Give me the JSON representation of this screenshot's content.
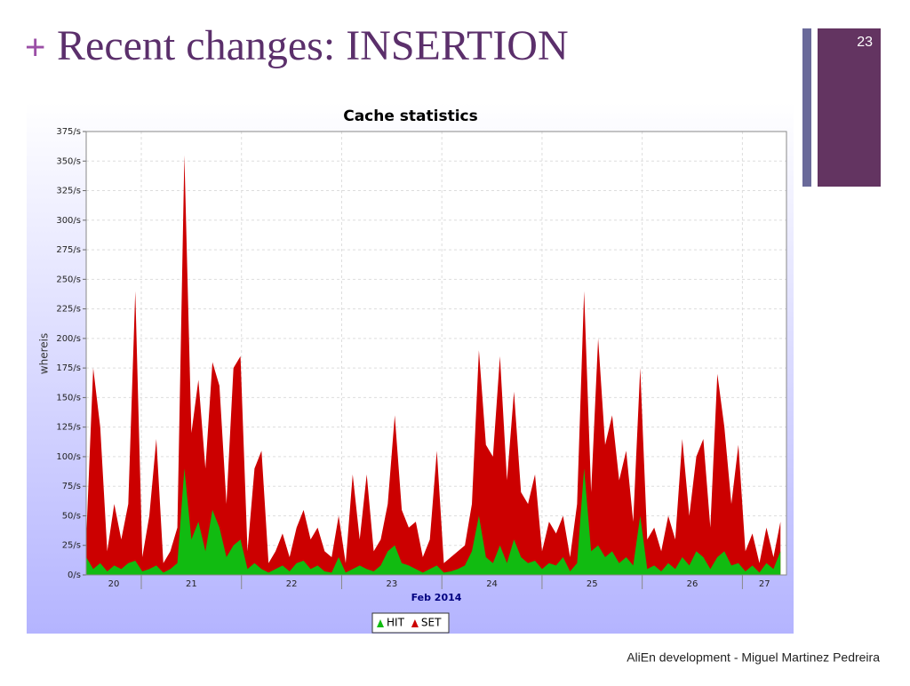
{
  "slide": {
    "marker": "+",
    "title": "Recent changes: INSERTION",
    "page_number": "23",
    "footer": "AliEn development - Miguel Martinez Pedreira"
  },
  "chart_data": {
    "type": "area",
    "title": "Cache statistics",
    "ylabel": "whereis",
    "xlabel": "Feb 2014",
    "x": [
      20.45,
      20.52,
      20.59,
      20.66,
      20.73,
      20.8,
      20.87,
      20.94,
      21.01,
      21.08,
      21.15,
      21.22,
      21.29,
      21.36,
      21.43,
      21.5,
      21.57,
      21.64,
      21.71,
      21.78,
      21.85,
      21.92,
      21.99,
      22.06,
      22.13,
      22.2,
      22.27,
      22.34,
      22.41,
      22.48,
      22.55,
      22.62,
      22.69,
      22.76,
      22.83,
      22.9,
      22.97,
      23.04,
      23.11,
      23.18,
      23.25,
      23.32,
      23.39,
      23.46,
      23.53,
      23.6,
      23.67,
      23.74,
      23.81,
      23.88,
      23.95,
      24.02,
      24.09,
      24.16,
      24.23,
      24.3,
      24.37,
      24.44,
      24.51,
      24.58,
      24.65,
      24.72,
      24.79,
      24.86,
      24.93,
      25.0,
      25.07,
      25.14,
      25.21,
      25.28,
      25.35,
      25.42,
      25.49,
      25.56,
      25.63,
      25.7,
      25.77,
      25.84,
      25.91,
      25.98,
      26.05,
      26.12,
      26.19,
      26.26,
      26.33,
      26.4,
      26.47,
      26.54,
      26.61,
      26.68,
      26.75,
      26.82,
      26.89,
      26.96,
      27.03,
      27.1,
      27.17,
      27.24,
      27.31,
      27.38
    ],
    "x_labels": [
      20,
      21,
      22,
      23,
      24,
      25,
      26,
      27
    ],
    "xlim": [
      20.45,
      27.44
    ],
    "xticks": [
      21,
      22,
      23,
      24,
      25,
      26,
      27
    ],
    "ylim": [
      0,
      375
    ],
    "yticks": [
      {
        "value": 0,
        "label": "0/s"
      },
      {
        "value": 25,
        "label": "25/s"
      },
      {
        "value": 50,
        "label": "50/s"
      },
      {
        "value": 75,
        "label": "75/s"
      },
      {
        "value": 100,
        "label": "100/s"
      },
      {
        "value": 125,
        "label": "125/s"
      },
      {
        "value": 150,
        "label": "150/s"
      },
      {
        "value": 175,
        "label": "175/s"
      },
      {
        "value": 200,
        "label": "200/s"
      },
      {
        "value": 225,
        "label": "225/s"
      },
      {
        "value": 250,
        "label": "250/s"
      },
      {
        "value": 275,
        "label": "275/s"
      },
      {
        "value": 300,
        "label": "300/s"
      },
      {
        "value": 325,
        "label": "325/s"
      },
      {
        "value": 350,
        "label": "350/s"
      },
      {
        "value": 375,
        "label": "375/s"
      }
    ],
    "grid": true,
    "series": [
      {
        "name": "HIT",
        "color": "#11bb11",
        "values": [
          15,
          5,
          10,
          3,
          8,
          5,
          10,
          12,
          3,
          5,
          8,
          2,
          5,
          10,
          90,
          30,
          45,
          20,
          55,
          40,
          15,
          25,
          30,
          5,
          10,
          5,
          2,
          5,
          8,
          3,
          10,
          12,
          5,
          8,
          3,
          2,
          15,
          2,
          5,
          8,
          5,
          3,
          8,
          20,
          25,
          10,
          8,
          5,
          2,
          5,
          8,
          2,
          3,
          5,
          8,
          20,
          50,
          15,
          10,
          25,
          10,
          30,
          15,
          10,
          12,
          5,
          10,
          8,
          15,
          3,
          10,
          90,
          20,
          25,
          15,
          20,
          10,
          15,
          8,
          50,
          5,
          8,
          3,
          10,
          5,
          15,
          8,
          20,
          15,
          5,
          15,
          20,
          8,
          10,
          3,
          8,
          2,
          10,
          5,
          20
        ]
      },
      {
        "name": "SET",
        "color": "#cc0000",
        "values": [
          30,
          175,
          125,
          20,
          60,
          30,
          60,
          240,
          15,
          50,
          115,
          10,
          20,
          40,
          355,
          120,
          165,
          90,
          180,
          160,
          60,
          175,
          185,
          20,
          90,
          105,
          10,
          20,
          35,
          15,
          40,
          55,
          30,
          40,
          20,
          15,
          50,
          10,
          85,
          30,
          85,
          20,
          30,
          60,
          135,
          55,
          40,
          45,
          15,
          30,
          105,
          10,
          15,
          20,
          25,
          60,
          190,
          110,
          100,
          185,
          80,
          155,
          70,
          60,
          85,
          20,
          45,
          35,
          50,
          15,
          60,
          240,
          70,
          200,
          110,
          135,
          80,
          105,
          45,
          175,
          30,
          40,
          20,
          50,
          30,
          115,
          50,
          100,
          115,
          40,
          170,
          125,
          60,
          110,
          20,
          35,
          10,
          40,
          15,
          45
        ]
      }
    ]
  }
}
